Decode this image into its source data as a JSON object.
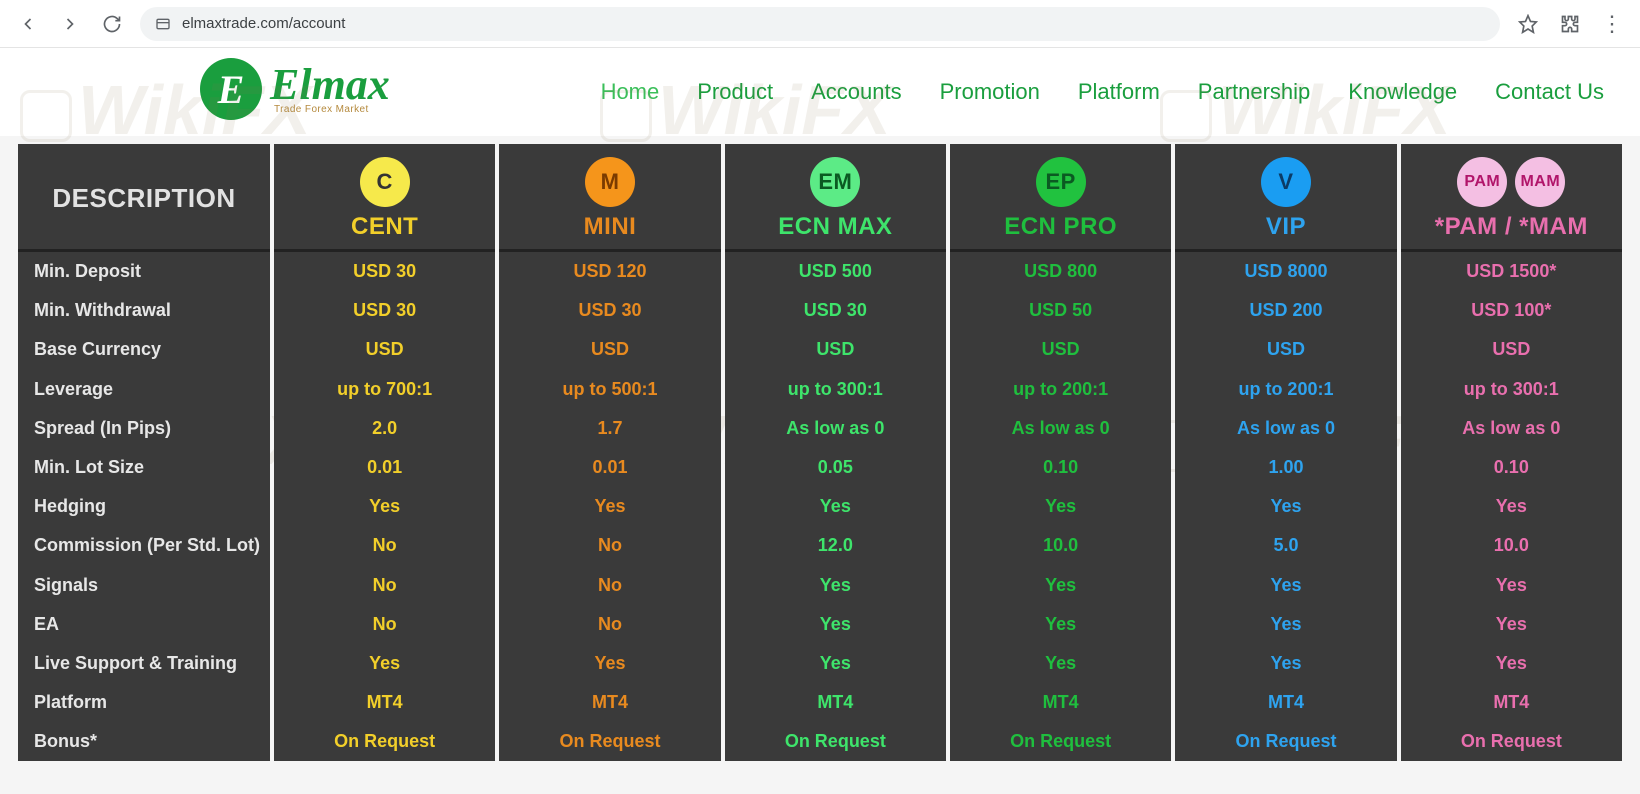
{
  "browser": {
    "url": "elmaxtrade.com/account"
  },
  "site": {
    "logo_letter": "E",
    "logo_text": "Elmax",
    "logo_tagline": "Trade Forex Market",
    "nav": [
      {
        "label": "Home",
        "active": true
      },
      {
        "label": "Product",
        "active": false
      },
      {
        "label": "Accounts",
        "active": false
      },
      {
        "label": "Promotion",
        "active": false
      },
      {
        "label": "Platform",
        "active": false
      },
      {
        "label": "Partnership",
        "active": false
      },
      {
        "label": "Knowledge",
        "active": false
      },
      {
        "label": "Contact Us",
        "active": false
      }
    ]
  },
  "watermark_text": "WikiFX",
  "table": {
    "description_header": "DESCRIPTION",
    "columns": [
      {
        "name": "CENT",
        "text_color": "#f2cf2a",
        "badges": [
          {
            "text": "C",
            "bg": "#f6e94b",
            "fg": "#333333"
          }
        ]
      },
      {
        "name": "MINI",
        "text_color": "#e88a1f",
        "badges": [
          {
            "text": "M",
            "bg": "#f5951b",
            "fg": "#7a3b00"
          }
        ]
      },
      {
        "name": "ECN MAX",
        "text_color": "#3ee46b",
        "badges": [
          {
            "text": "EM",
            "bg": "#5ceb86",
            "fg": "#0b5a22"
          }
        ]
      },
      {
        "name": "ECN PRO",
        "text_color": "#1fbf3e",
        "badges": [
          {
            "text": "EP",
            "bg": "#21c23f",
            "fg": "#0b5a22"
          }
        ]
      },
      {
        "name": "VIP",
        "text_color": "#2ea3ef",
        "badges": [
          {
            "text": "V",
            "bg": "#1a9df2",
            "fg": "#0b3b66"
          }
        ]
      },
      {
        "name": "*PAM / *MAM",
        "text_color": "#e96fae",
        "badges": [
          {
            "text": "PAM",
            "bg": "#f4bfe3",
            "fg": "#b1156a"
          },
          {
            "text": "MAM",
            "bg": "#f4bfe3",
            "fg": "#b1156a"
          }
        ]
      }
    ],
    "rows": [
      {
        "label": "Min. Deposit",
        "values": [
          "USD 30",
          "USD 120",
          "USD 500",
          "USD 800",
          "USD 8000",
          "USD 1500*"
        ]
      },
      {
        "label": "Min. Withdrawal",
        "values": [
          "USD 30",
          "USD 30",
          "USD 30",
          "USD 50",
          "USD 200",
          "USD 100*"
        ]
      },
      {
        "label": "Base Currency",
        "values": [
          "USD",
          "USD",
          "USD",
          "USD",
          "USD",
          "USD"
        ]
      },
      {
        "label": "Leverage",
        "values": [
          "up to 700:1",
          "up to 500:1",
          "up to 300:1",
          "up to 200:1",
          "up to 200:1",
          "up to 300:1"
        ]
      },
      {
        "label": "Spread (In Pips)",
        "values": [
          "2.0",
          "1.7",
          "As low as 0",
          "As low as 0",
          "As low as 0",
          "As low as 0"
        ]
      },
      {
        "label": "Min. Lot Size",
        "values": [
          "0.01",
          "0.01",
          "0.05",
          "0.10",
          "1.00",
          "0.10"
        ]
      },
      {
        "label": "Hedging",
        "values": [
          "Yes",
          "Yes",
          "Yes",
          "Yes",
          "Yes",
          "Yes"
        ]
      },
      {
        "label": "Commission (Per Std. Lot)",
        "values": [
          "No",
          "No",
          "12.0",
          "10.0",
          "5.0",
          "10.0"
        ]
      },
      {
        "label": "Signals",
        "values": [
          "No",
          "No",
          "Yes",
          "Yes",
          "Yes",
          "Yes"
        ]
      },
      {
        "label": "EA",
        "values": [
          "No",
          "No",
          "Yes",
          "Yes",
          "Yes",
          "Yes"
        ]
      },
      {
        "label": "Live Support & Training",
        "values": [
          "Yes",
          "Yes",
          "Yes",
          "Yes",
          "Yes",
          "Yes"
        ]
      },
      {
        "label": "Platform",
        "values": [
          "MT4",
          "MT4",
          "MT4",
          "MT4",
          "MT4",
          "MT4"
        ]
      },
      {
        "label": "Bonus*",
        "values": [
          "On Request",
          "On Request",
          "On Request",
          "On Request",
          "On Request",
          "On Request"
        ]
      }
    ]
  },
  "colors": {
    "table_bg": "#3a3a3a",
    "page_bg": "#f5f5f5"
  }
}
